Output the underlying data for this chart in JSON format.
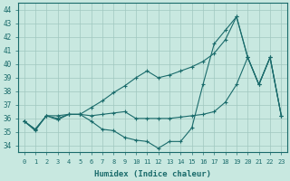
{
  "xlabel": "Humidex (Indice chaleur)",
  "xlim": [
    -0.5,
    23.5
  ],
  "ylim": [
    33.5,
    44.5
  ],
  "yticks": [
    34,
    35,
    36,
    37,
    38,
    39,
    40,
    41,
    42,
    43,
    44
  ],
  "xticks": [
    0,
    1,
    2,
    3,
    4,
    5,
    6,
    7,
    8,
    9,
    10,
    11,
    12,
    13,
    14,
    15,
    16,
    17,
    18,
    19,
    20,
    21,
    22,
    23
  ],
  "xtick_labels": [
    "0",
    "1",
    "2",
    "3",
    "4",
    "5",
    "6",
    "7",
    "8",
    "9",
    "10",
    "11",
    "12",
    "13",
    "14",
    "15",
    "16",
    "17",
    "18",
    "19",
    "20",
    "21",
    "22",
    "23"
  ],
  "bg_color": "#c8e8e0",
  "line_color": "#1a6b6b",
  "grid_color": "#a0c8c0",
  "line1_y": [
    35.8,
    35.1,
    36.2,
    35.9,
    36.3,
    36.3,
    35.8,
    35.2,
    35.1,
    34.6,
    34.4,
    34.3,
    33.8,
    34.3,
    34.3,
    35.3,
    38.5,
    41.5,
    42.5,
    43.5,
    40.5,
    38.5,
    40.5,
    36.2
  ],
  "line2_y": [
    35.8,
    35.2,
    36.2,
    36.0,
    36.3,
    36.3,
    36.2,
    36.3,
    36.4,
    36.5,
    36.0,
    36.0,
    36.0,
    36.0,
    36.1,
    36.2,
    36.3,
    36.5,
    37.2,
    38.5,
    40.5,
    38.5,
    40.5,
    36.2
  ],
  "line3_y": [
    35.8,
    35.2,
    36.2,
    36.2,
    36.3,
    36.3,
    36.8,
    37.3,
    37.9,
    38.4,
    39.0,
    39.5,
    39.0,
    39.2,
    39.5,
    39.8,
    40.2,
    40.8,
    41.8,
    43.5,
    40.5,
    38.5,
    40.5,
    36.2
  ]
}
